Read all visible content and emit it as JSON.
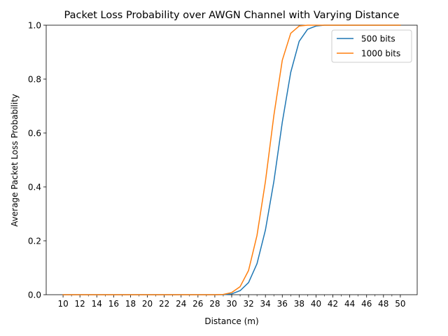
{
  "chart_data": {
    "type": "line",
    "title": "Packet Loss Probability over AWGN Channel with Varying Distance",
    "xlabel": "Distance (m)",
    "ylabel": "Average Packet Loss Probability",
    "xlim": [
      8.0,
      52.0
    ],
    "ylim": [
      0.0,
      1.0
    ],
    "grid": false,
    "legend_position": "top-right",
    "x_ticks": [
      10,
      12,
      14,
      16,
      18,
      20,
      22,
      24,
      26,
      28,
      30,
      32,
      34,
      36,
      38,
      40,
      42,
      44,
      46,
      48,
      50
    ],
    "x_minor_ticks": [
      11,
      13,
      15,
      17,
      19,
      21,
      23,
      25,
      27,
      29,
      31,
      33,
      35,
      37,
      39,
      41,
      43,
      45,
      47,
      49
    ],
    "y_ticks": [
      0.0,
      0.2,
      0.4,
      0.6,
      0.8,
      1.0
    ],
    "y_tick_labels": [
      "0.0",
      "0.2",
      "0.4",
      "0.6",
      "0.8",
      "1.0"
    ],
    "x": [
      10,
      11,
      12,
      13,
      14,
      15,
      16,
      17,
      18,
      19,
      20,
      21,
      22,
      23,
      24,
      25,
      26,
      27,
      28,
      29,
      30,
      31,
      32,
      33,
      34,
      35,
      36,
      37,
      38,
      39,
      40,
      41,
      42,
      43,
      44,
      45,
      46,
      47,
      48,
      49,
      50
    ],
    "series": [
      {
        "name": "500 bits",
        "color": "#1f77b4",
        "values": [
          0,
          0,
          0,
          0,
          0,
          0,
          0,
          0,
          0,
          0,
          0,
          0,
          0,
          0,
          0,
          0,
          0,
          0,
          0,
          0,
          0.003,
          0.015,
          0.045,
          0.115,
          0.24,
          0.42,
          0.64,
          0.825,
          0.94,
          0.985,
          0.997,
          1.0,
          1.0,
          1.0,
          1.0,
          1.0,
          1.0,
          1.0,
          1.0,
          1.0,
          1.0
        ]
      },
      {
        "name": "1000 bits",
        "color": "#ff7f0e",
        "values": [
          0,
          0,
          0,
          0,
          0,
          0,
          0,
          0,
          0,
          0,
          0,
          0,
          0,
          0,
          0,
          0,
          0,
          0,
          0,
          0.001,
          0.008,
          0.03,
          0.09,
          0.22,
          0.42,
          0.665,
          0.87,
          0.97,
          0.997,
          1.0,
          1.0,
          1.0,
          1.0,
          1.0,
          1.0,
          1.0,
          1.0,
          1.0,
          1.0,
          1.0,
          1.0
        ]
      }
    ]
  }
}
